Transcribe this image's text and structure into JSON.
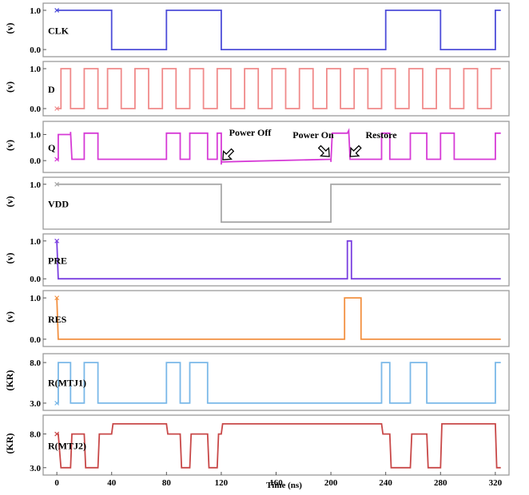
{
  "chart_data": {
    "type": "line",
    "xlabel": "Time (ns)",
    "x_ticks": [
      0,
      40,
      80,
      120,
      160,
      200,
      240,
      280,
      320
    ],
    "xlim": [
      -10,
      330
    ],
    "grid": false,
    "annotations": [
      {
        "text": "Power Off",
        "panel": "Q",
        "x": 120
      },
      {
        "text": "Power On",
        "panel": "Q",
        "x": 200
      },
      {
        "text": "Restore",
        "panel": "Q",
        "x": 213
      }
    ],
    "panels": [
      {
        "name": "CLK",
        "unit": "(v)",
        "color": "#4d4dd9",
        "ylim": [
          -0.08,
          1.08
        ],
        "ticks": [
          {
            "v": 1.0,
            "label": "1.0"
          },
          {
            "v": 0.0,
            "label": "0.0"
          }
        ],
        "segments": [
          [
            [
              0,
              1
            ],
            [
              40,
              1
            ],
            [
              40,
              0
            ],
            [
              80,
              0
            ],
            [
              80,
              1
            ],
            [
              120,
              1
            ],
            [
              120,
              0
            ],
            [
              240,
              0
            ],
            [
              240,
              1
            ],
            [
              280,
              1
            ],
            [
              280,
              0
            ],
            [
              320,
              0
            ],
            [
              320,
              1
            ],
            [
              324,
              1
            ]
          ]
        ]
      },
      {
        "name": "D",
        "unit": "(v)",
        "color": "#f08a8a",
        "ylim": [
          -0.08,
          1.08
        ],
        "ticks": [
          {
            "v": 1.0,
            "label": "1.0"
          },
          {
            "v": 0.0,
            "label": "0.0"
          }
        ],
        "segments": [
          [
            [
              0,
              0
            ],
            [
              3,
              0
            ],
            [
              3,
              1
            ],
            [
              10,
              1
            ],
            [
              10,
              0
            ],
            [
              20,
              0
            ],
            [
              20,
              1
            ],
            [
              30,
              1
            ],
            [
              30,
              0
            ],
            [
              37,
              0
            ],
            [
              37,
              1
            ],
            [
              47,
              1
            ],
            [
              47,
              0
            ],
            [
              57,
              0
            ],
            [
              57,
              1
            ],
            [
              67,
              1
            ],
            [
              67,
              0
            ],
            [
              77,
              0
            ],
            [
              77,
              1
            ],
            [
              87,
              1
            ],
            [
              87,
              0
            ],
            [
              97,
              0
            ],
            [
              97,
              1
            ],
            [
              107,
              1
            ],
            [
              107,
              0
            ],
            [
              117,
              0
            ],
            [
              117,
              1
            ],
            [
              127,
              1
            ],
            [
              127,
              0
            ],
            [
              137,
              0
            ],
            [
              137,
              1
            ],
            [
              147,
              1
            ],
            [
              147,
              0
            ],
            [
              157,
              0
            ],
            [
              157,
              1
            ],
            [
              167,
              1
            ],
            [
              167,
              0
            ],
            [
              177,
              0
            ],
            [
              177,
              1
            ],
            [
              187,
              1
            ],
            [
              187,
              0
            ],
            [
              197,
              0
            ],
            [
              197,
              1
            ],
            [
              207,
              1
            ],
            [
              207,
              0
            ],
            [
              217,
              0
            ],
            [
              217,
              1
            ],
            [
              227,
              1
            ],
            [
              227,
              0
            ],
            [
              237,
              0
            ],
            [
              237,
              1
            ],
            [
              247,
              1
            ],
            [
              247,
              0
            ],
            [
              257,
              0
            ],
            [
              257,
              1
            ],
            [
              267,
              1
            ],
            [
              267,
              0
            ],
            [
              277,
              0
            ],
            [
              277,
              1
            ],
            [
              287,
              1
            ],
            [
              287,
              0
            ],
            [
              297,
              0
            ],
            [
              297,
              1
            ],
            [
              307,
              1
            ],
            [
              307,
              0
            ],
            [
              317,
              0
            ],
            [
              317,
              1
            ],
            [
              324,
              1
            ]
          ]
        ]
      },
      {
        "name": "Q",
        "unit": "(v)",
        "color": "#d63ad6",
        "ylim": [
          -0.3,
          1.35
        ],
        "ticks": [
          {
            "v": 1.0,
            "label": "1.0"
          },
          {
            "v": 0.0,
            "label": "0.0"
          }
        ],
        "segments": [
          [
            [
              0,
              0.05
            ],
            [
              1,
              0.05
            ],
            [
              1,
              1
            ],
            [
              10,
              1
            ],
            [
              10,
              1.1
            ],
            [
              11,
              0.05
            ],
            [
              20,
              0.05
            ],
            [
              20,
              1.05
            ],
            [
              30,
              1.05
            ],
            [
              30,
              0.05
            ],
            [
              80,
              0.05
            ],
            [
              80,
              1.05
            ],
            [
              90,
              1.05
            ],
            [
              90,
              0.05
            ],
            [
              97,
              0.05
            ],
            [
              97,
              1.05
            ],
            [
              110,
              1.05
            ],
            [
              110,
              0.05
            ],
            [
              117,
              0.05
            ],
            [
              117,
              1.05
            ],
            [
              120,
              1.05
            ],
            [
              120,
              -0.15
            ]
          ],
          [
            [
              120,
              -0.05
            ],
            [
              200,
              0.05
            ]
          ],
          [
            [
              200,
              0.05
            ],
            [
              200,
              -0.05
            ],
            [
              201,
              1.05
            ],
            [
              212,
              1.05
            ],
            [
              213,
              1.15
            ],
            [
              214,
              0.05
            ],
            [
              237,
              0.05
            ],
            [
              237,
              1.05
            ],
            [
              243,
              1.05
            ],
            [
              243,
              0.05
            ],
            [
              258,
              0.05
            ],
            [
              258,
              1.05
            ],
            [
              270,
              1.05
            ],
            [
              270,
              0.05
            ],
            [
              280,
              0.05
            ],
            [
              280,
              1.05
            ],
            [
              290,
              1.05
            ],
            [
              290,
              0.05
            ],
            [
              320,
              0.05
            ],
            [
              320,
              1.05
            ],
            [
              324,
              1.05
            ]
          ]
        ]
      },
      {
        "name": "VDD",
        "unit": "(v)",
        "color": "#a8a8a8",
        "ylim": [
          -0.08,
          1.08
        ],
        "ticks": [
          {
            "v": 1.0,
            "label": "1.0"
          }
        ],
        "segments": [
          [
            [
              0,
              1
            ],
            [
              120,
              1
            ],
            [
              120,
              0
            ],
            [
              200,
              0
            ],
            [
              200,
              1
            ],
            [
              324,
              1
            ]
          ]
        ]
      },
      {
        "name": "PRE",
        "unit": "(v)",
        "color": "#7a3fe0",
        "ylim": [
          -0.08,
          1.08
        ],
        "ticks": [
          {
            "v": 1.0,
            "label": "1.0"
          },
          {
            "v": 0.0,
            "label": "0.0"
          }
        ],
        "segments": [
          [
            [
              0,
              1
            ],
            [
              1,
              0
            ],
            [
              212,
              0
            ],
            [
              212,
              1
            ],
            [
              215,
              1
            ],
            [
              215,
              0
            ],
            [
              324,
              0
            ]
          ]
        ]
      },
      {
        "name": "RES",
        "unit": "(v)",
        "color": "#f29040",
        "ylim": [
          -0.08,
          1.08
        ],
        "ticks": [
          {
            "v": 1.0,
            "label": "1.0"
          },
          {
            "v": 0.0,
            "label": "0.0"
          }
        ],
        "segments": [
          [
            [
              0,
              1
            ],
            [
              1,
              0
            ],
            [
              210,
              0
            ],
            [
              210,
              1
            ],
            [
              222,
              1
            ],
            [
              222,
              0
            ],
            [
              324,
              0
            ]
          ]
        ]
      },
      {
        "name": "R(MTJ1)",
        "unit": "(KR)",
        "color": "#7ab8e8",
        "ylim": [
          2.6,
          8.6
        ],
        "ticks": [
          {
            "v": 8.0,
            "label": "8.0"
          },
          {
            "v": 3.0,
            "label": "3.0"
          }
        ],
        "segments": [
          [
            [
              0,
              3
            ],
            [
              1,
              3
            ],
            [
              1,
              8
            ],
            [
              10,
              8
            ],
            [
              10,
              3
            ],
            [
              20,
              3
            ],
            [
              20,
              8
            ],
            [
              30,
              8
            ],
            [
              30,
              3
            ],
            [
              80,
              3
            ],
            [
              80,
              8
            ],
            [
              90,
              8
            ],
            [
              90,
              3
            ],
            [
              97,
              3
            ],
            [
              97,
              8
            ],
            [
              110,
              8
            ],
            [
              110,
              3
            ],
            [
              237,
              3
            ],
            [
              237,
              8
            ],
            [
              243,
              8
            ],
            [
              243,
              3
            ],
            [
              258,
              3
            ],
            [
              258,
              8
            ],
            [
              270,
              8
            ],
            [
              270,
              3
            ],
            [
              320,
              3
            ],
            [
              320,
              8
            ],
            [
              324,
              8
            ]
          ]
        ]
      },
      {
        "name": "R(MTJ2)",
        "unit": "(KR)",
        "color": "#c84848",
        "ylim": [
          2.5,
          10.2
        ],
        "ticks": [
          {
            "v": 8.0,
            "label": "8.0"
          },
          {
            "v": 3.0,
            "label": "3.0"
          }
        ],
        "segments": [
          [
            [
              0,
              8
            ],
            [
              1,
              8
            ],
            [
              3,
              3
            ],
            [
              10,
              3
            ],
            [
              11,
              8
            ],
            [
              20,
              8
            ],
            [
              21,
              3
            ],
            [
              30,
              3
            ],
            [
              31,
              8
            ],
            [
              40,
              8
            ],
            [
              41,
              9.5
            ],
            [
              80,
              9.5
            ],
            [
              81,
              8
            ],
            [
              90,
              8
            ],
            [
              91,
              3
            ],
            [
              97,
              3
            ],
            [
              98,
              8
            ],
            [
              110,
              8
            ],
            [
              111,
              3
            ],
            [
              117,
              3
            ],
            [
              118,
              8
            ],
            [
              120,
              8
            ],
            [
              121,
              9.5
            ],
            [
              237,
              9.5
            ],
            [
              238,
              8
            ],
            [
              243,
              8
            ],
            [
              244,
              3
            ],
            [
              258,
              3
            ],
            [
              259,
              8
            ],
            [
              270,
              8
            ],
            [
              271,
              3
            ],
            [
              280,
              3
            ],
            [
              281,
              9.5
            ],
            [
              320,
              9.5
            ],
            [
              321,
              3
            ],
            [
              324,
              3
            ]
          ]
        ]
      }
    ]
  }
}
